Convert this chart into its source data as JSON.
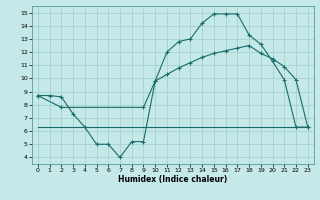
{
  "xlabel": "Humidex (Indice chaleur)",
  "xlim": [
    -0.5,
    23.5
  ],
  "ylim": [
    3.5,
    15.5
  ],
  "yticks": [
    4,
    5,
    6,
    7,
    8,
    9,
    10,
    11,
    12,
    13,
    14,
    15
  ],
  "xticks": [
    0,
    1,
    2,
    3,
    4,
    5,
    6,
    7,
    8,
    9,
    10,
    11,
    12,
    13,
    14,
    15,
    16,
    17,
    18,
    19,
    20,
    21,
    22,
    23
  ],
  "bg_color": "#c5e8e8",
  "grid_color": "#9ecece",
  "line_color": "#1a6b6b",
  "line1_x": [
    0,
    1,
    2,
    3,
    4,
    5,
    6,
    7,
    8,
    9,
    10,
    11,
    12,
    13,
    14,
    15,
    16,
    17,
    18,
    19,
    20,
    21,
    22,
    23
  ],
  "line1_y": [
    8.7,
    8.7,
    8.6,
    7.3,
    6.3,
    5.0,
    5.0,
    4.0,
    5.2,
    5.2,
    9.8,
    12.0,
    12.8,
    13.0,
    14.2,
    14.9,
    14.9,
    14.9,
    13.3,
    12.6,
    11.3,
    9.9,
    6.3,
    6.3
  ],
  "line2_x": [
    0,
    2,
    9,
    10,
    11,
    12,
    13,
    14,
    15,
    16,
    17,
    18,
    19,
    20,
    21,
    22,
    23
  ],
  "line2_y": [
    8.7,
    7.8,
    7.8,
    9.8,
    10.3,
    10.8,
    11.2,
    11.6,
    11.9,
    12.1,
    12.3,
    12.5,
    11.9,
    11.5,
    10.9,
    9.9,
    6.3
  ],
  "line3_x": [
    0,
    23
  ],
  "line3_y": [
    6.3,
    6.3
  ]
}
